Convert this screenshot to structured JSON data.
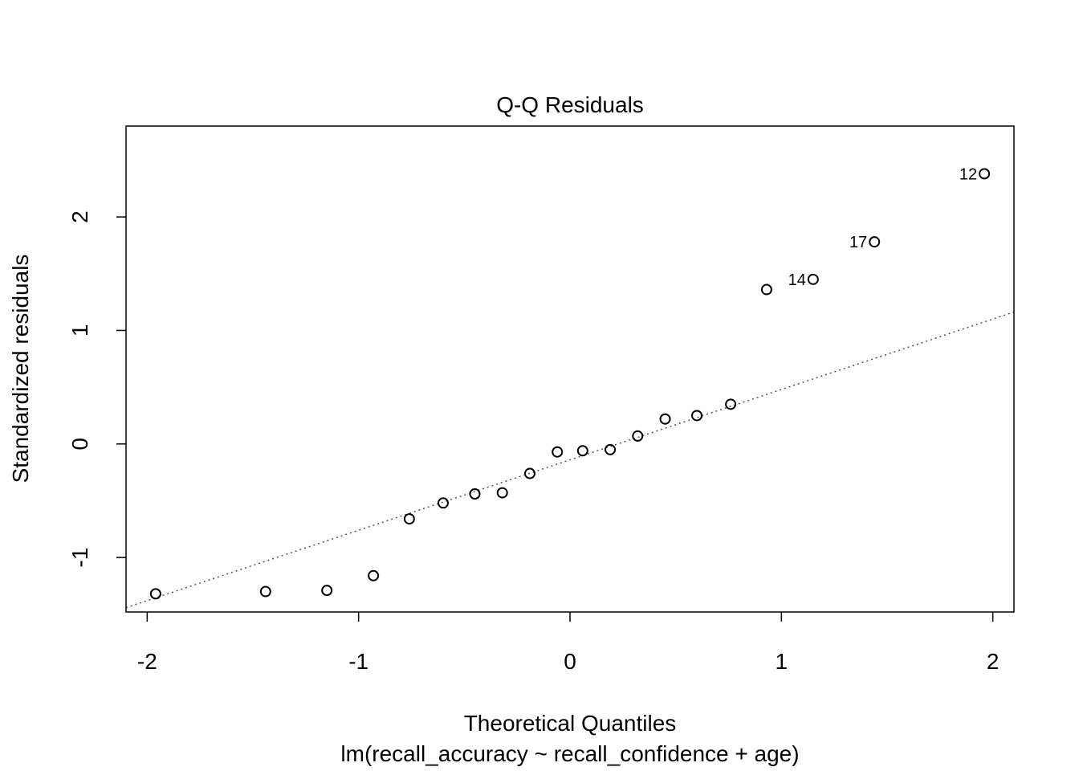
{
  "chart_data": {
    "type": "scatter",
    "title": "Q-Q Residuals",
    "xlabel": "Theoretical Quantiles",
    "subtitle": "lm(recall_accuracy ~ recall_confidence + age)",
    "ylabel": "Standardized residuals",
    "xlim": [
      -2.1,
      2.1
    ],
    "ylim": [
      -1.48,
      2.8
    ],
    "xticks": [
      -2,
      -1,
      0,
      1,
      2
    ],
    "xtick_labels": [
      "-2",
      "-1",
      "0",
      "1",
      "2"
    ],
    "yticks": [
      -1,
      0,
      1,
      2
    ],
    "ytick_labels": [
      "-1",
      "0",
      "1",
      "2"
    ],
    "grid": false,
    "reference_line": {
      "slope": 0.62,
      "intercept": -0.14,
      "style": "dotted"
    },
    "points": [
      {
        "x": -1.96,
        "y": -1.32,
        "label": ""
      },
      {
        "x": -1.44,
        "y": -1.3,
        "label": ""
      },
      {
        "x": -1.15,
        "y": -1.29,
        "label": ""
      },
      {
        "x": -0.93,
        "y": -1.16,
        "label": ""
      },
      {
        "x": -0.76,
        "y": -0.66,
        "label": ""
      },
      {
        "x": -0.6,
        "y": -0.52,
        "label": ""
      },
      {
        "x": -0.45,
        "y": -0.44,
        "label": ""
      },
      {
        "x": -0.32,
        "y": -0.43,
        "label": ""
      },
      {
        "x": -0.19,
        "y": -0.26,
        "label": ""
      },
      {
        "x": -0.06,
        "y": -0.07,
        "label": ""
      },
      {
        "x": 0.06,
        "y": -0.06,
        "label": ""
      },
      {
        "x": 0.19,
        "y": -0.05,
        "label": ""
      },
      {
        "x": 0.32,
        "y": 0.07,
        "label": ""
      },
      {
        "x": 0.45,
        "y": 0.22,
        "label": ""
      },
      {
        "x": 0.6,
        "y": 0.25,
        "label": ""
      },
      {
        "x": 0.76,
        "y": 0.35,
        "label": ""
      },
      {
        "x": 0.93,
        "y": 1.36,
        "label": ""
      },
      {
        "x": 1.15,
        "y": 1.45,
        "label": "14"
      },
      {
        "x": 1.44,
        "y": 1.78,
        "label": "17"
      },
      {
        "x": 1.96,
        "y": 2.38,
        "label": "12"
      }
    ]
  }
}
